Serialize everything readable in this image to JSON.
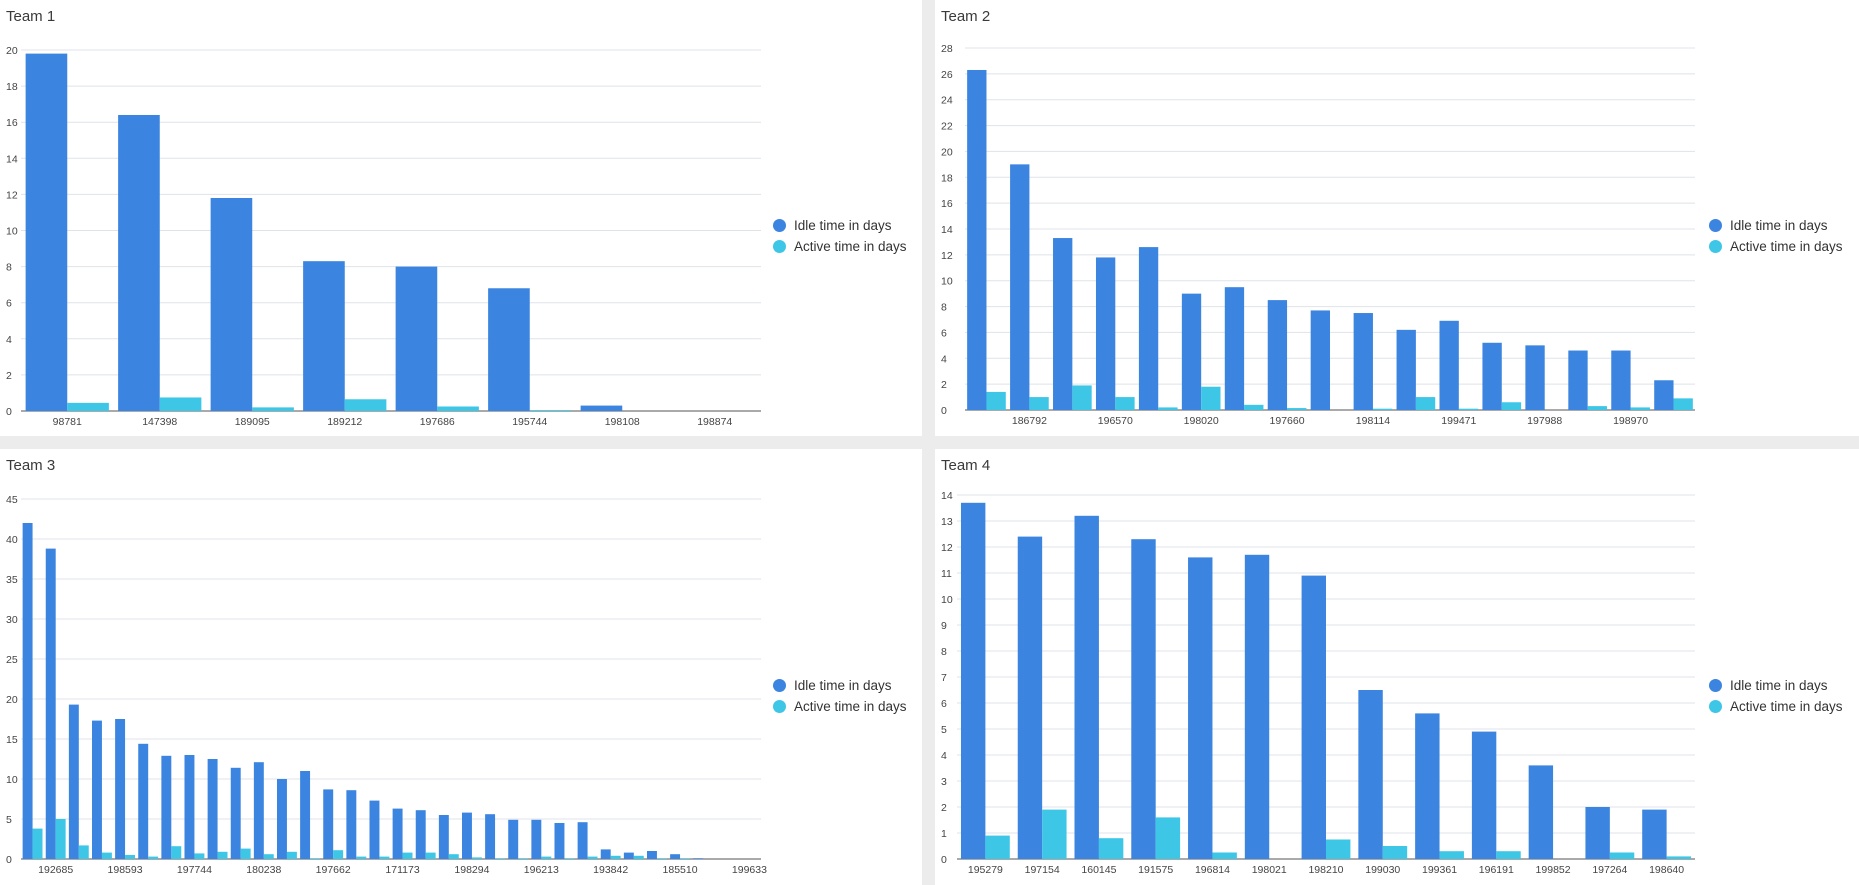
{
  "colors": {
    "idle": "#3b84e0",
    "active": "#3ec6e6",
    "grid": "#dfe3e8",
    "axis": "#333333"
  },
  "legend": {
    "idle": "Idle time in days",
    "active": "Active time in days"
  },
  "chart_data": [
    {
      "type": "bar",
      "title": "Team 1",
      "ylim": [
        0,
        20
      ],
      "ytick_step": 2,
      "categories": [
        "98781",
        "147398",
        "189095",
        "189212",
        "197686",
        "195744",
        "198108",
        "198874"
      ],
      "tick_labels": [
        "98781",
        "147398",
        "189095",
        "189212",
        "197686",
        "195744",
        "198108",
        "198874"
      ],
      "series": [
        {
          "name": "Idle time in days",
          "values": [
            19.8,
            16.4,
            11.8,
            8.3,
            8.0,
            6.8,
            0.3,
            0.0
          ]
        },
        {
          "name": "Active time in days",
          "values": [
            0.45,
            0.75,
            0.2,
            0.65,
            0.25,
            0.05,
            0.0,
            0.0
          ]
        }
      ],
      "legend_position": "right"
    },
    {
      "type": "bar",
      "title": "Team 2",
      "ylim": [
        0,
        28
      ],
      "ytick_step": 2,
      "categories": [
        "c1",
        "186792",
        "c3",
        "196570",
        "c5",
        "198020",
        "c7",
        "197660",
        "c9",
        "198114",
        "c11",
        "199471",
        "c13",
        "197988",
        "c15",
        "198970",
        "c17"
      ],
      "tick_labels": [
        "",
        "186792",
        "",
        "196570",
        "",
        "198020",
        "",
        "197660",
        "",
        "198114",
        "",
        "199471",
        "",
        "197988",
        "",
        "198970",
        ""
      ],
      "series": [
        {
          "name": "Idle time in days",
          "values": [
            26.3,
            19.0,
            13.3,
            11.8,
            12.6,
            9.0,
            9.5,
            8.5,
            7.7,
            7.5,
            6.2,
            6.9,
            5.2,
            5.0,
            4.6,
            4.6,
            2.3
          ]
        },
        {
          "name": "Active time in days",
          "values": [
            1.4,
            1.0,
            1.9,
            1.0,
            0.2,
            1.8,
            0.4,
            0.15,
            0.0,
            0.1,
            1.0,
            0.1,
            0.6,
            0.0,
            0.3,
            0.2,
            0.9
          ]
        }
      ],
      "legend_position": "right"
    },
    {
      "type": "bar",
      "title": "Team 3",
      "ylim": [
        0,
        45
      ],
      "ytick_step": 5,
      "categories": [
        "d1",
        "192685",
        "d3",
        "d4",
        "198593",
        "d6",
        "d7",
        "197744",
        "d9",
        "d10",
        "180238",
        "d12",
        "d13",
        "197662",
        "d15",
        "d16",
        "171173",
        "d18",
        "d19",
        "198294",
        "d21",
        "d22",
        "196213",
        "d24",
        "d25",
        "193842",
        "d27",
        "d28",
        "185510",
        "d30",
        "d31",
        "199633"
      ],
      "tick_labels": [
        "",
        "192685",
        "",
        "",
        "198593",
        "",
        "",
        "197744",
        "",
        "",
        "180238",
        "",
        "",
        "197662",
        "",
        "",
        "171173",
        "",
        "",
        "198294",
        "",
        "",
        "196213",
        "",
        "",
        "193842",
        "",
        "",
        "185510",
        "",
        "",
        "199633"
      ],
      "series": [
        {
          "name": "Idle time in days",
          "values": [
            42.0,
            38.8,
            19.3,
            17.3,
            17.5,
            14.4,
            12.9,
            13.0,
            12.5,
            11.4,
            12.1,
            10.0,
            11.0,
            8.7,
            8.6,
            7.3,
            6.3,
            6.1,
            5.5,
            5.8,
            5.6,
            4.9,
            4.9,
            4.5,
            4.6,
            1.2,
            0.8,
            1.0,
            0.6,
            0.1,
            0.0,
            0.0
          ]
        },
        {
          "name": "Active time in days",
          "values": [
            3.8,
            5.0,
            1.7,
            0.8,
            0.5,
            0.3,
            1.6,
            0.7,
            0.9,
            1.3,
            0.6,
            0.9,
            0.1,
            1.1,
            0.3,
            0.3,
            0.8,
            0.8,
            0.6,
            0.2,
            0.1,
            0.1,
            0.3,
            0.1,
            0.3,
            0.4,
            0.4,
            0.1,
            0.1,
            0.0,
            0.0,
            0.0
          ]
        }
      ],
      "legend_position": "right"
    },
    {
      "type": "bar",
      "title": "Team 4",
      "ylim": [
        0,
        14
      ],
      "ytick_step": 1,
      "categories": [
        "195279",
        "197154",
        "160145",
        "191575",
        "196814",
        "198021",
        "198210",
        "199030",
        "199361",
        "196191",
        "199852",
        "197264",
        "198640"
      ],
      "tick_labels": [
        "195279",
        "197154",
        "160145",
        "191575",
        "196814",
        "198021",
        "198210",
        "199030",
        "199361",
        "196191",
        "199852",
        "197264",
        "198640"
      ],
      "series": [
        {
          "name": "Idle time in days",
          "values": [
            13.7,
            12.4,
            13.2,
            12.3,
            11.6,
            11.7,
            10.9,
            6.5,
            5.6,
            4.9,
            3.6,
            2.0,
            1.9
          ]
        },
        {
          "name": "Active time in days",
          "values": [
            0.9,
            1.9,
            0.8,
            1.6,
            0.25,
            0.0,
            0.75,
            0.5,
            0.3,
            0.3,
            0.0,
            0.25,
            0.1
          ]
        }
      ],
      "legend_position": "right"
    }
  ]
}
